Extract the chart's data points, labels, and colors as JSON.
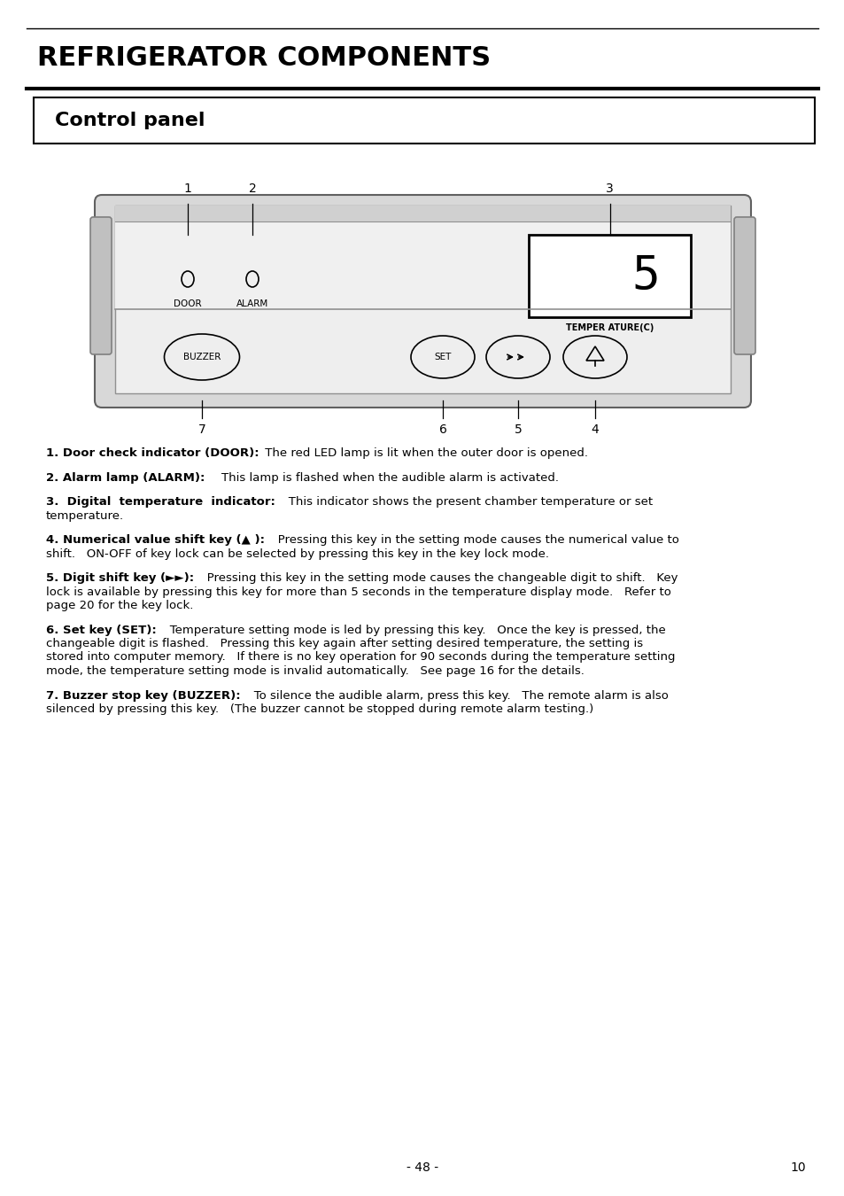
{
  "title": "REFRIGERATOR COMPONENTS",
  "subtitle": "Control panel",
  "bg_color": "#ffffff",
  "page_number": "- 48 -",
  "page_num_right": "10",
  "items": [
    {
      "bold": "1. Door check indicator (DOOR):",
      "normal": " The red LED lamp is lit when the outer door is opened."
    },
    {
      "bold": "2. Alarm lamp (ALARM):",
      "normal": "    This lamp is flashed when the audible alarm is activated."
    },
    {
      "bold": "3.  Digital  temperature  indicator:",
      "normal": "   This indicator shows the present chamber temperature or set\ntemperature."
    },
    {
      "bold": "4. Numerical value shift key (▲ ):",
      "normal": "   Pressing this key in the setting mode causes the numerical value to\nshift.   ON-OFF of key lock can be selected by pressing this key in the key lock mode."
    },
    {
      "bold": "5. Digit shift key (►►):",
      "normal": "   Pressing this key in the setting mode causes the changeable digit to shift.   Key\nlock is available by pressing this key for more than 5 seconds in the temperature display mode.   Refer to\npage 20 for the key lock."
    },
    {
      "bold": "6. Set key (SET):",
      "normal": "   Temperature setting mode is led by pressing this key.   Once the key is pressed, the\nchangeable digit is flashed.   Pressing this key again after setting desired temperature, the setting is\nstored into computer memory.   If there is no key operation for 90 seconds during the temperature setting\nmode, the temperature setting mode is invalid automatically.   See page 16 for the details."
    },
    {
      "bold": "7. Buzzer stop key (BUZZER):",
      "normal": "   To silence the audible alarm, press this key.   The remote alarm is also\nsilenced by pressing this key.   (The buzzer cannot be stopped during remote alarm testing.)"
    }
  ]
}
